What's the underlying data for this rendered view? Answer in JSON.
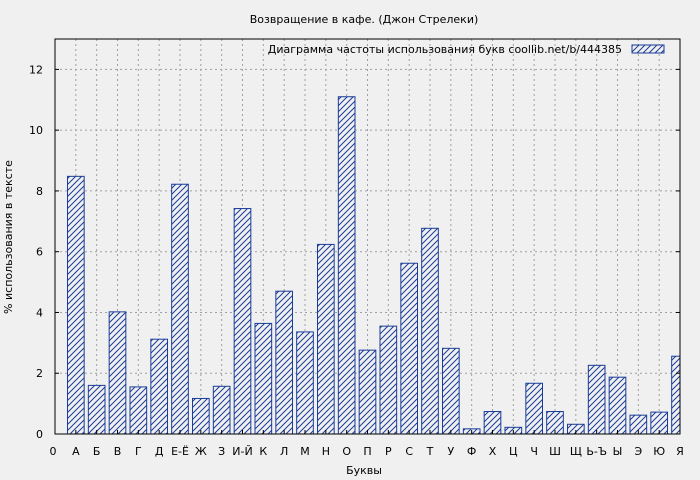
{
  "chart_data": {
    "type": "bar",
    "title": "Возвращение в кафе. (Джон Стрелеки)",
    "xlabel": "Буквы",
    "ylabel": "% использования в тексте",
    "legend": {
      "label": "Диаграмма частоты использования букв  coollib.net/b/444385",
      "position": "top-right"
    },
    "x_tick_start_label": "0",
    "categories": [
      "А",
      "Б",
      "В",
      "Г",
      "Д",
      "Е-Ё",
      "Ж",
      "З",
      "И-Й",
      "К",
      "Л",
      "М",
      "Н",
      "О",
      "П",
      "Р",
      "С",
      "Т",
      "У",
      "Ф",
      "Х",
      "Ц",
      "Ч",
      "Ш",
      "Щ",
      "Ь-Ъ",
      "Ы",
      "Э",
      "Ю",
      "Я"
    ],
    "values": [
      8.48,
      1.6,
      4.02,
      1.55,
      3.12,
      8.22,
      1.17,
      1.57,
      7.42,
      3.64,
      4.7,
      3.36,
      6.24,
      11.1,
      2.76,
      3.55,
      5.62,
      6.77,
      2.82,
      0.17,
      0.74,
      0.22,
      1.67,
      0.74,
      0.32,
      2.26,
      1.87,
      0.62,
      0.72,
      2.56
    ],
    "ylim": [
      0,
      13
    ],
    "yticks": [
      0,
      2,
      4,
      6,
      8,
      10,
      12
    ],
    "grid": true,
    "colors": {
      "background": "#f0f0f0",
      "plot_background": "#f0f0f0",
      "bar_stroke": "#1a3d99",
      "hatch": "#1a3d99",
      "grid": "#a0a0a0",
      "axis": "#000000"
    }
  }
}
